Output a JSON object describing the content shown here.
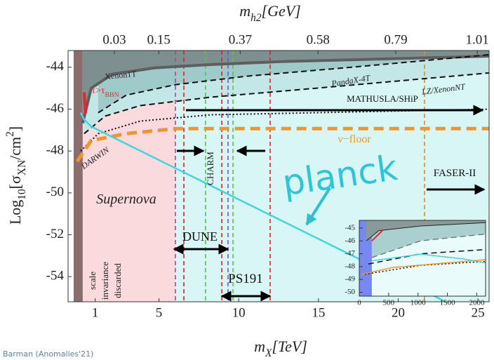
{
  "chart_data": [
    {
      "type": "line",
      "xlabel": [
        {
          "text": "m"
        },
        {
          "text": "X",
          "shift": "sub"
        },
        {
          "text": "[TeV]"
        }
      ],
      "ylabel": [
        {
          "text": "Log"
        },
        {
          "text": "10",
          "shift": "sub"
        },
        {
          "text": "[σ"
        },
        {
          "text": "XN",
          "shift": "sub"
        },
        {
          "text": "/cm"
        },
        {
          "text": "2",
          "shift": "super"
        },
        {
          "text": "]"
        }
      ],
      "x2label": [
        {
          "text": "m"
        },
        {
          "text": "h2",
          "shift": "sub"
        },
        {
          "text": "[GeV]"
        }
      ],
      "xlim": [
        -0.7,
        25.7
      ],
      "ylim": [
        -55.2,
        -43.2
      ],
      "x2lim": [
        -0.095,
        1.042
      ],
      "xticks": [
        1,
        5,
        10,
        15,
        20,
        25
      ],
      "yticks": [
        -44,
        -46,
        -48,
        -50,
        -52,
        -54
      ],
      "x2ticks": [
        0.03,
        0.15,
        0.37,
        0.58,
        0.79,
        1.01
      ],
      "bands": [
        {
          "x": [
            -0.35,
            0.22
          ],
          "color": "#8a6e6e"
        },
        {
          "x": [
            0.22,
            6.03
          ],
          "color": "#fadadd"
        },
        {
          "x": [
            6.03,
            25.7
          ],
          "color": "#d8f6f6"
        }
      ],
      "vlines": [
        {
          "x": 6.03,
          "color": "#b0468c"
        },
        {
          "x": 6.56,
          "color": "#d7262b"
        },
        {
          "x": 7.92,
          "color": "#4ccd3b"
        },
        {
          "x": 8.94,
          "color": "#d7262b"
        },
        {
          "x": 9.33,
          "color": "#7b4fd6"
        },
        {
          "x": 9.64,
          "color": "#4ccd3b"
        },
        {
          "x": 11.97,
          "color": "#d7262b"
        },
        {
          "x": 21.65,
          "color": "#e08a1e"
        }
      ],
      "series": [
        {
          "color": "#5e5e5e",
          "width": 4,
          "dash": "solid",
          "fill_above": "#7d8f8f",
          "x": [
            0.22,
            0.75,
            2.07,
            4.71,
            8.23,
            12.63,
            19.23,
            25.7
          ],
          "values": [
            -46.67,
            -45.0,
            -44.33,
            -44.03,
            -43.87,
            -43.73,
            -43.6,
            -43.47
          ]
        },
        {
          "color": "#111111",
          "width": 2,
          "dash": "dashed",
          "fill_above": "#9fcaca",
          "x": [
            1.19,
            2.95,
            6.04,
            10.44,
            17.05,
            25.7
          ],
          "values": [
            -46.17,
            -45.33,
            -44.83,
            -44.43,
            -44.0,
            -43.4
          ]
        },
        {
          "color": "#111111",
          "width": 2,
          "dash": "dashed",
          "fill_above": "#c3e6e6",
          "x": [
            0.31,
            1.63,
            3.83,
            8.24,
            14.85,
            25.7
          ],
          "values": [
            -47.17,
            -46.33,
            -45.83,
            -45.43,
            -45.0,
            -44.27
          ]
        },
        {
          "color": "#111111",
          "width": 2,
          "dash": "dotted",
          "x": [
            0.09,
            1.19,
            3.83,
            8.24,
            14.85,
            25.7
          ],
          "values": [
            -48.0,
            -47.17,
            -46.57,
            -46.27,
            -46.17,
            -46.0
          ]
        },
        {
          "color": "#f0962a",
          "width": 5,
          "dash": "longdash",
          "x": [
            -0.13,
            0.75,
            2.95,
            6.04,
            25.7
          ],
          "values": [
            -48.5,
            -47.5,
            -47.17,
            -46.93,
            -46.93
          ]
        },
        {
          "color": "#3fd6dc",
          "width": 2.5,
          "dash": "solid",
          "x": [
            0.09,
            0.31,
            0.75,
            22.9
          ],
          "values": [
            -46.17,
            -46.5,
            -46.83,
            -55.17
          ]
        },
        {
          "color": "#e8252a",
          "width": 4,
          "dash": "solid",
          "x": [
            0.31,
            0.4
          ],
          "values": [
            -45.2,
            -46.2
          ]
        }
      ],
      "annotations": [
        [
          {
            "text": "Xenon1T"
          }
        ],
        [
          {
            "text": "PandaX-4T"
          }
        ],
        [
          {
            "text": "LZ/XenonNT"
          }
        ],
        [
          {
            "text": "MATHUSLA/SHiP"
          }
        ],
        [
          {
            "text": "τ>τ"
          },
          {
            "text": "BBN",
            "shift": "sub"
          }
        ],
        [
          {
            "text": "DARWIN"
          }
        ],
        [
          {
            "text": "ν−floor"
          }
        ],
        [
          {
            "text": "CHARM"
          }
        ],
        [
          {
            "text": "FASER-II"
          }
        ],
        [
          {
            "text": "Supernova"
          }
        ],
        [
          {
            "text": "planck"
          }
        ],
        [
          {
            "text": "DUNE"
          }
        ],
        [
          {
            "text": "PS191"
          }
        ],
        [
          {
            "text": "scale"
          }
        ],
        [
          {
            "text": "invariance"
          }
        ],
        [
          {
            "text": "discarded"
          }
        ]
      ]
    },
    {
      "type": "line",
      "xlim": [
        0,
        2150
      ],
      "ylim": [
        -50.3,
        -44.4
      ],
      "xticks": [
        0,
        500,
        1000,
        1500,
        2000
      ],
      "yticks": [
        -45,
        -46,
        -47,
        -48,
        -49,
        -50
      ],
      "bands": [
        {
          "x": [
            0,
            214
          ],
          "color": "#5b6cf0"
        }
      ],
      "series": [
        {
          "color": "#222222",
          "width": 1,
          "dash": "solid",
          "fill_above": "#8a9a9a",
          "x": [
            119,
            333,
            1048,
            2150
          ],
          "values": [
            -46.0,
            -45.2,
            -44.84,
            -44.58
          ]
        },
        {
          "color": "#666666",
          "width": 1.2,
          "dash": "dashed",
          "fill_above": "#a9cfcf",
          "x": [
            214,
            1048,
            2150
          ],
          "values": [
            -47.3,
            -45.99,
            -45.47
          ]
        },
        {
          "color": "#111111",
          "width": 1.5,
          "dash": "dashed",
          "x": [
            155,
            1048,
            2150
          ],
          "values": [
            -47.8,
            -47.0,
            -46.67
          ]
        },
        {
          "color": "#111111",
          "width": 1.5,
          "dash": "dotted",
          "x": [
            95,
            1048,
            2150
          ],
          "values": [
            -48.6,
            -47.9,
            -47.6
          ]
        },
        {
          "color": "#f0962a",
          "width": 1.5,
          "dash": "solid",
          "x": [
            36,
            571,
            2150
          ],
          "values": [
            -48.6,
            -48.07,
            -47.45
          ]
        },
        {
          "color": "#3fd6dc",
          "width": 1.5,
          "dash": "solid",
          "x": [
            214,
            1048,
            1762,
            2150
          ],
          "values": [
            -47.55,
            -47.03,
            -47.4,
            -47.7
          ]
        },
        {
          "color": "#e8252a",
          "width": 2,
          "dash": "solid",
          "x": [
            214,
            393
          ],
          "values": [
            -46.0,
            -45.2
          ]
        }
      ]
    }
  ],
  "footer": "Barman (Anomalies'21)"
}
